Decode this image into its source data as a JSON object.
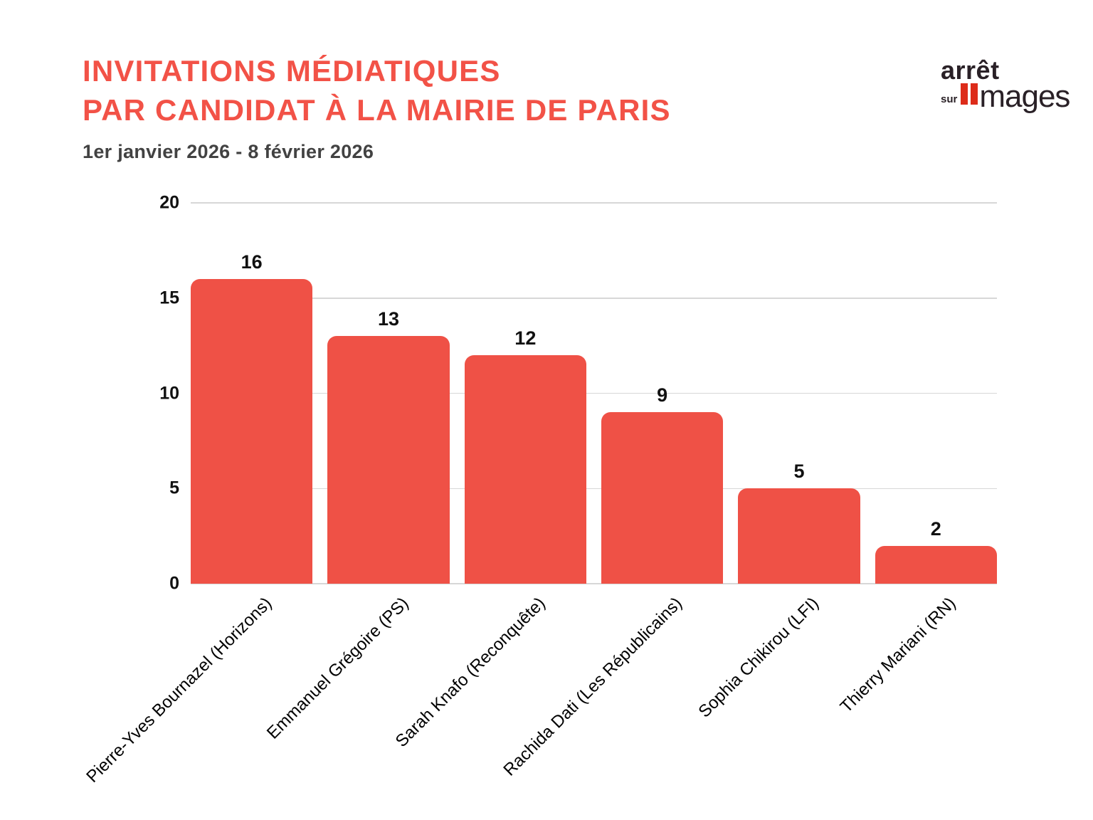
{
  "header": {
    "title_line1": "INVITATIONS MÉDIATIQUES",
    "title_line2": "PAR CANDIDAT À LA MAIRIE DE PARIS",
    "subtitle": "1er janvier 2026 - 8 février 2026"
  },
  "logo": {
    "word1": "arrêt",
    "word2": "sur",
    "word3": "mages"
  },
  "colors": {
    "accent": "#f25247",
    "bar": "#ef5146",
    "pause": "#dd2c1a",
    "logotext": "#2a2127",
    "subtext": "#424242",
    "grid": "#d7d7d7",
    "axistext": "#111111"
  },
  "chart_data": {
    "type": "bar",
    "title": "Invitations médiatiques par candidat à la mairie de Paris",
    "subtitle": "1er janvier 2026 - 8 février 2026",
    "categories": [
      "Pierre-Yves Bournazel (Horizons)",
      "Emmanuel Grégoire (PS)",
      "Sarah Knafo (Reconquête)",
      "Rachida Dati (Les Républicains)",
      "Sophia Chikirou (LFI)",
      "Thierry Mariani (RN)"
    ],
    "values": [
      16,
      13,
      12,
      9,
      5,
      2
    ],
    "value_labels": true,
    "bar_color": "#ef5146",
    "xlabel": "",
    "ylabel": "",
    "ylim": [
      0,
      20
    ],
    "yticks": [
      0,
      5,
      10,
      15,
      20
    ],
    "grid": true,
    "legend": false,
    "xtick_rotation_deg": 45
  }
}
